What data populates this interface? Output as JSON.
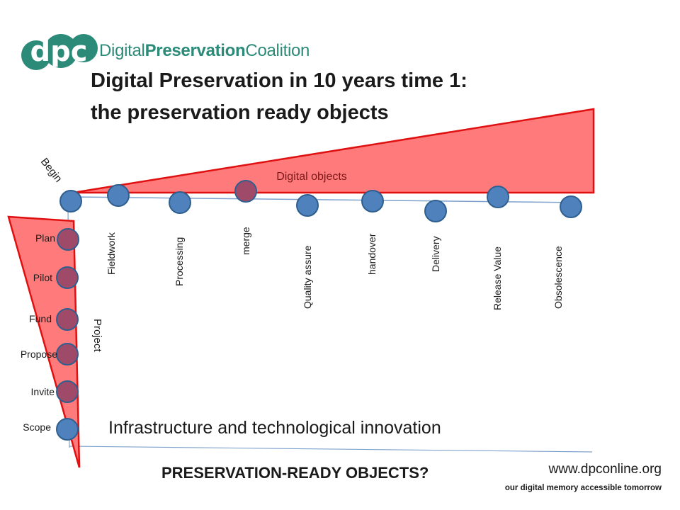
{
  "logo": {
    "mark": "dpc",
    "name_part1": "Digital",
    "name_part2": "Preservation",
    "name_part3": "Coalition",
    "brand_color": "#2c8a78"
  },
  "title": {
    "line1": "Digital Preservation in 10 years time 1:",
    "line2": "the preservation ready objects"
  },
  "diagram": {
    "begin_label": "Begin",
    "digital_objects_label": "Digital objects",
    "project_label": "Project",
    "horizontal_stages": [
      "Fieldwork",
      "Processing",
      "merge",
      "Quality assure",
      "handover",
      "Delivery",
      "Release Value",
      "Obsolescence"
    ],
    "vertical_stages": [
      "Plan",
      "Pilot",
      "Fund",
      "Propose",
      "Invite",
      "Scope"
    ],
    "infrastructure_label": "Infrastructure and technological innovation",
    "question": "PRESERVATION-READY OBJECTS?",
    "colors": {
      "triangle_fill": "#ff7b7b",
      "triangle_stroke": "#e01010",
      "node_fill": "#4f81bd",
      "node_stroke": "#2f5f8f",
      "node_overlap_fill": "#a04a6a",
      "arrow": "#7ea1cc"
    }
  },
  "footer": {
    "url": "www.dpconline.org",
    "tagline": "our digital memory accessible tomorrow"
  }
}
